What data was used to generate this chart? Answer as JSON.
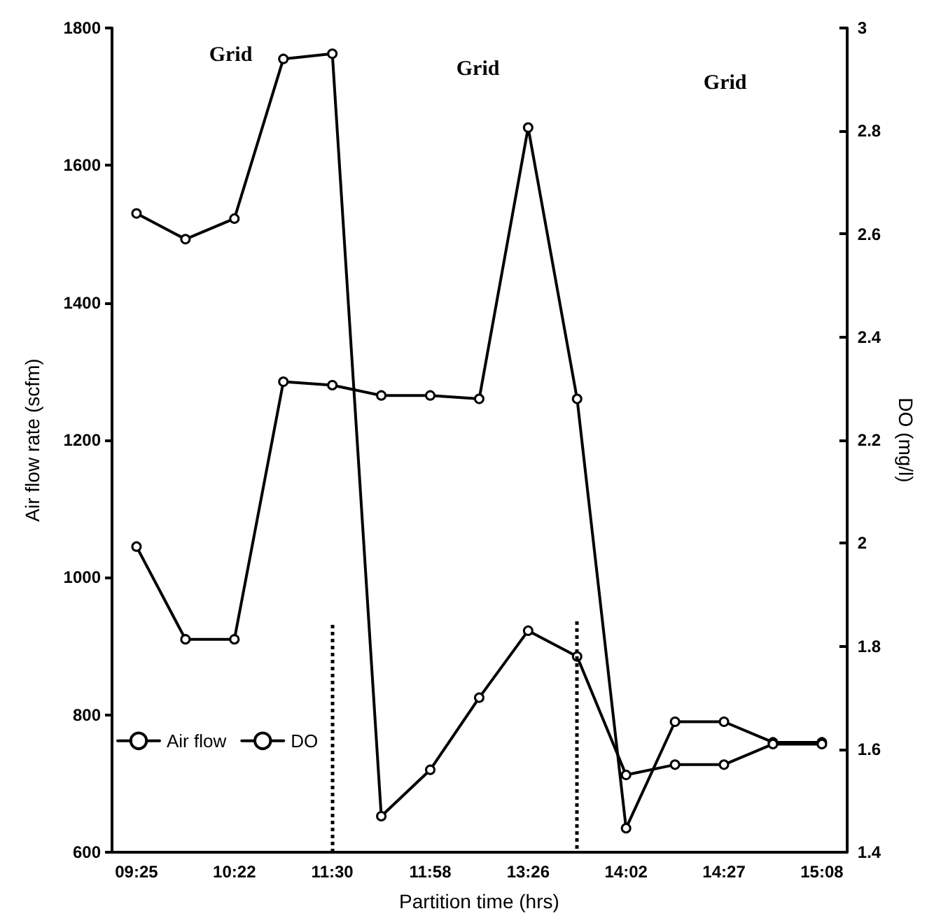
{
  "chart_data": {
    "type": "line",
    "xlabel": "Partition time (hrs)",
    "ylabel": "Air flow rate (scfm)",
    "y2label": "DO (mg/l)",
    "categories": [
      "09:25",
      null,
      "10:22",
      null,
      "11:30",
      null,
      "11:58",
      null,
      "13:26",
      null,
      "14:02",
      null,
      "14:27",
      null,
      "15:08"
    ],
    "series": [
      {
        "name": "Air flow",
        "color": "#000000",
        "values": [
          1045,
          910,
          910,
          1285,
          1280,
          1265,
          1265,
          1260,
          1655,
          1260,
          635,
          790,
          790,
          760,
          760
        ]
      },
      {
        "name": "DO",
        "color": "#000000",
        "axis": "y2",
        "values": [
          2.64,
          2.59,
          2.63,
          2.94,
          2.95,
          1.47,
          1.56,
          1.7,
          1.83,
          1.78,
          1.55,
          1.57,
          1.57,
          1.61,
          1.61
        ]
      }
    ],
    "ylim": [
      600,
      1800
    ],
    "yticks": [
      600,
      800,
      1000,
      1200,
      1400,
      1600,
      1800
    ],
    "y2lim": [
      1.4,
      3
    ],
    "y2ticks": [
      1.4,
      1.6,
      1.8,
      2,
      2.2,
      2.4,
      2.6,
      2.8,
      3
    ],
    "ref_lines": [
      {
        "axis": "x",
        "value": "11:30",
        "line_style": "dotted"
      }
    ],
    "annotations": [
      "Grid",
      "Grid",
      "Grid"
    ],
    "grid": false,
    "legend": "bottom left",
    "marker": "circle",
    "line_style": "solid"
  }
}
